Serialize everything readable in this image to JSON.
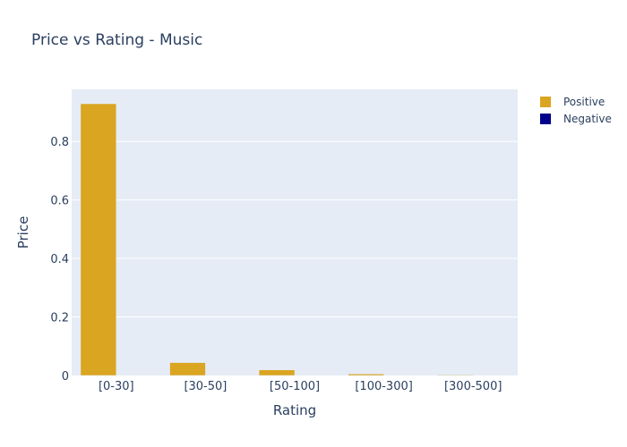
{
  "chart_data": {
    "type": "bar",
    "title": "Price vs Rating - Music",
    "xlabel": "Rating",
    "ylabel": "Price",
    "categories": [
      "[0-30]",
      "[30-50]",
      "[50-100]",
      "[100-300]",
      "[300-500]"
    ],
    "series": [
      {
        "name": "Positive",
        "color": "#DAA520",
        "values": [
          0.929,
          0.044,
          0.019,
          0.005,
          0.002
        ]
      },
      {
        "name": "Negative",
        "color": "#00008B",
        "values": [
          0,
          0,
          0,
          0,
          0
        ]
      }
    ],
    "ylim": [
      0,
      0.978
    ],
    "yticks": [
      0,
      0.2,
      0.4,
      0.6,
      0.8
    ],
    "ytick_labels": [
      "0",
      "0.2",
      "0.4",
      "0.6",
      "0.8"
    ],
    "grid": true,
    "legend": "top-right",
    "plot_background": "#E5ECF6"
  }
}
